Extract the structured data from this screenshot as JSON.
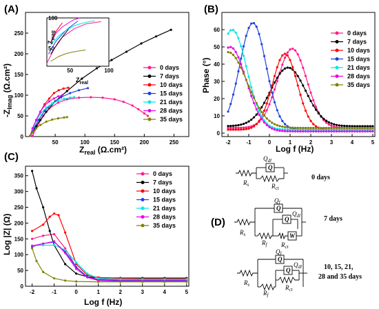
{
  "panel_labels": [
    "(A)",
    "(B)",
    "(C)",
    "(D)"
  ],
  "legend": {
    "labels": [
      "0 days",
      "7 days",
      "10 days",
      "15 days",
      "21 days",
      "28 days",
      "35 days"
    ],
    "colors": [
      "#ff1a8c",
      "#000000",
      "#ff0000",
      "#1f3fe0",
      "#00e6e6",
      "#e600e6",
      "#808000"
    ]
  },
  "chart_data": [
    {
      "id": "A",
      "type": "scatter",
      "xlabel_main": "Z",
      "xlabel_sub": "real",
      "xlabel_unit": " (Ω.cm²)",
      "ylabel_main": "-Z",
      "ylabel_sub": "Imag",
      "ylabel_unit": " (Ω.cm²)",
      "xlim": [
        0,
        275
      ],
      "ylim": [
        0,
        300
      ],
      "xticks": [
        50,
        100,
        150,
        200,
        250
      ],
      "yticks": [
        0,
        50,
        100,
        150,
        200,
        250
      ],
      "series": [
        {
          "name": "0 days",
          "x": [
            12,
            20,
            30,
            40,
            55,
            70,
            90,
            110,
            130,
            150,
            165,
            180,
            190,
            200,
            206
          ],
          "y": [
            2,
            25,
            50,
            68,
            82,
            90,
            94,
            95,
            94,
            90,
            84,
            75,
            66,
            56,
            50
          ]
        },
        {
          "name": "7 days",
          "x": [
            8,
            12,
            18,
            25,
            35,
            50,
            70,
            95,
            120,
            145,
            170,
            195,
            220,
            245
          ],
          "y": [
            2,
            10,
            25,
            40,
            60,
            85,
            110,
            140,
            165,
            185,
            205,
            225,
            242,
            258
          ]
        },
        {
          "name": "10 days",
          "x": [
            8,
            12,
            18,
            25,
            32,
            40,
            48,
            56,
            64,
            72
          ],
          "y": [
            2,
            20,
            40,
            60,
            78,
            92,
            105,
            112,
            116,
            118
          ]
        },
        {
          "name": "15 days",
          "x": [
            8,
            14,
            22,
            32,
            45,
            60,
            75,
            90,
            105
          ],
          "y": [
            2,
            20,
            40,
            62,
            80,
            95,
            105,
            112,
            117
          ]
        },
        {
          "name": "21 days",
          "x": [
            8,
            12,
            18,
            25,
            35,
            45,
            55,
            65,
            75,
            82
          ],
          "y": [
            2,
            18,
            38,
            55,
            70,
            80,
            87,
            91,
            94,
            95
          ]
        },
        {
          "name": "28 days",
          "x": [
            8,
            12,
            18,
            25,
            32,
            40,
            48,
            55,
            62
          ],
          "y": [
            2,
            20,
            40,
            60,
            75,
            85,
            92,
            97,
            100
          ]
        },
        {
          "name": "35 days",
          "x": [
            8,
            12,
            18,
            25,
            35,
            45,
            55,
            65,
            70
          ],
          "y": [
            2,
            10,
            20,
            28,
            36,
            41,
            44,
            46,
            47
          ]
        }
      ],
      "inset": {
        "xlabel_main": "Z",
        "xlabel_sub": "real",
        "ylabel_main": "Z",
        "ylabel_sub": "mag",
        "xlim": [
          20,
          100
        ],
        "ylim": [
          20,
          100
        ],
        "xticks": [
          50,
          100
        ],
        "yticks": [
          50,
          100
        ]
      }
    },
    {
      "id": "B",
      "type": "line",
      "xlabel": "Log f (Hz)",
      "ylabel": "Phase (°)",
      "xlim": [
        -2.3,
        5.1
      ],
      "ylim": [
        -2,
        70
      ],
      "xticks": [
        -2,
        -1,
        0,
        1,
        2,
        3,
        4,
        5
      ],
      "yticks": [
        0,
        10,
        20,
        30,
        40,
        50,
        60
      ],
      "series": [
        {
          "name": "0 days",
          "peak_x": 1.1,
          "peak_y": 49,
          "base": 3,
          "width": 1.0
        },
        {
          "name": "7 days",
          "peak_x": 0.9,
          "peak_y": 38,
          "base": 4,
          "width": 1.2
        },
        {
          "name": "10 days",
          "peak_x": 0.75,
          "peak_y": 46,
          "base": 2,
          "width": 0.85
        },
        {
          "name": "15 days",
          "peak_x": -0.8,
          "peak_y": 64,
          "base": 2,
          "width": 0.9
        },
        {
          "name": "21 days",
          "peak_x": -1.8,
          "peak_y": 60,
          "base": 2,
          "width": 1.0
        },
        {
          "name": "28 days",
          "peak_x": -1.9,
          "peak_y": 50,
          "base": 1,
          "width": 1.1
        },
        {
          "name": "35 days",
          "peak_x": -2.0,
          "peak_y": 47,
          "base": 3,
          "width": 1.3
        }
      ]
    },
    {
      "id": "C",
      "type": "line",
      "xlabel": "Log f (Hz)",
      "ylabel": "Log |Z| (Ω)",
      "xlim": [
        -2.3,
        5.1
      ],
      "ylim": [
        0,
        380
      ],
      "xticks": [
        -2,
        -1,
        0,
        1,
        2,
        3,
        4,
        5
      ],
      "yticks": [
        0,
        50,
        100,
        150,
        200,
        250,
        300,
        350
      ],
      "series": [
        {
          "name": "0 days",
          "x": [
            -2,
            -1.5,
            -1,
            -0.5,
            0,
            0.5,
            1,
            2,
            3,
            4,
            5
          ],
          "y": [
            150,
            160,
            165,
            120,
            60,
            30,
            22,
            20,
            20,
            20,
            20
          ]
        },
        {
          "name": "7 days",
          "x": [
            -2,
            -1.8,
            -1.5,
            -1.2,
            -1,
            -0.5,
            0,
            0.5,
            1,
            2,
            3,
            4,
            5
          ],
          "y": [
            365,
            310,
            250,
            175,
            130,
            70,
            40,
            30,
            27,
            26,
            26,
            26,
            26
          ]
        },
        {
          "name": "10 days",
          "x": [
            -2,
            -1.5,
            -1.2,
            -1,
            -0.8,
            -0.5,
            0,
            0.5,
            1,
            2,
            3,
            4,
            5
          ],
          "y": [
            175,
            195,
            220,
            230,
            225,
            170,
            70,
            35,
            28,
            25,
            24,
            24,
            24
          ]
        },
        {
          "name": "15 days",
          "x": [
            -2,
            -1.5,
            -1,
            -0.5,
            0,
            0.5,
            1,
            2,
            3,
            4,
            5
          ],
          "y": [
            125,
            135,
            140,
            110,
            60,
            30,
            20,
            18,
            18,
            18,
            18
          ]
        },
        {
          "name": "21 days",
          "x": [
            -2,
            -1.5,
            -1,
            -0.5,
            0,
            0.5,
            1,
            2,
            3,
            4,
            5
          ],
          "y": [
            128,
            130,
            130,
            115,
            75,
            40,
            25,
            22,
            22,
            22,
            22
          ]
        },
        {
          "name": "28 days",
          "x": [
            -2,
            -1.5,
            -1,
            -0.5,
            0,
            0.5,
            1,
            2,
            3,
            4,
            5
          ],
          "y": [
            128,
            135,
            142,
            105,
            55,
            28,
            18,
            16,
            16,
            16,
            16
          ]
        },
        {
          "name": "35 days",
          "x": [
            -2,
            -1.8,
            -1.5,
            -1,
            -0.5,
            0,
            1,
            2,
            3,
            4,
            5
          ],
          "y": [
            120,
            80,
            45,
            25,
            18,
            15,
            14,
            14,
            14,
            14,
            14
          ]
        }
      ]
    }
  ],
  "circuit_labels": {
    "rs": "R",
    "rs_sub": "s",
    "qdl": "Q",
    "qdl_sub": "dl",
    "rct": "R",
    "rct_sub": "ct",
    "qf": "Q",
    "qf_sub": "f",
    "rf": "R",
    "rf_sub": "f",
    "q_box": "Q",
    "w_box": "W"
  },
  "circuit_days": [
    "0 days",
    "7 days",
    "10, 15, 21,",
    "28 and 35 days"
  ]
}
